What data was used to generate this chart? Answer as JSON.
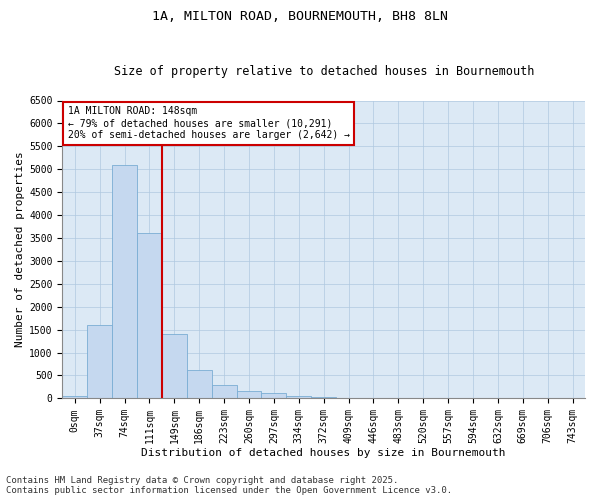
{
  "title_line1": "1A, MILTON ROAD, BOURNEMOUTH, BH8 8LN",
  "title_line2": "Size of property relative to detached houses in Bournemouth",
  "xlabel": "Distribution of detached houses by size in Bournemouth",
  "ylabel": "Number of detached properties",
  "categories": [
    "0sqm",
    "37sqm",
    "74sqm",
    "111sqm",
    "149sqm",
    "186sqm",
    "223sqm",
    "260sqm",
    "297sqm",
    "334sqm",
    "372sqm",
    "409sqm",
    "446sqm",
    "483sqm",
    "520sqm",
    "557sqm",
    "594sqm",
    "632sqm",
    "669sqm",
    "706sqm",
    "743sqm"
  ],
  "values": [
    50,
    1600,
    5100,
    3600,
    1400,
    620,
    300,
    170,
    120,
    60,
    20,
    10,
    5,
    2,
    1,
    1,
    0,
    0,
    0,
    0,
    0
  ],
  "bar_color": "#c5d8ef",
  "bar_edge_color": "#7aadd4",
  "vline_color": "#cc0000",
  "annotation_text": "1A MILTON ROAD: 148sqm\n← 79% of detached houses are smaller (10,291)\n20% of semi-detached houses are larger (2,642) →",
  "annotation_box_color": "#ffffff",
  "annotation_box_edge_color": "#cc0000",
  "ylim": [
    0,
    6500
  ],
  "yticks": [
    0,
    500,
    1000,
    1500,
    2000,
    2500,
    3000,
    3500,
    4000,
    4500,
    5000,
    5500,
    6000,
    6500
  ],
  "footnote1": "Contains HM Land Registry data © Crown copyright and database right 2025.",
  "footnote2": "Contains public sector information licensed under the Open Government Licence v3.0.",
  "bg_color": "#ffffff",
  "plot_bg_color": "#dce9f5",
  "grid_color": "#b0c8e0",
  "title_fontsize": 9.5,
  "subtitle_fontsize": 8.5,
  "axis_label_fontsize": 8,
  "tick_fontsize": 7,
  "footnote_fontsize": 6.5,
  "annot_fontsize": 7
}
